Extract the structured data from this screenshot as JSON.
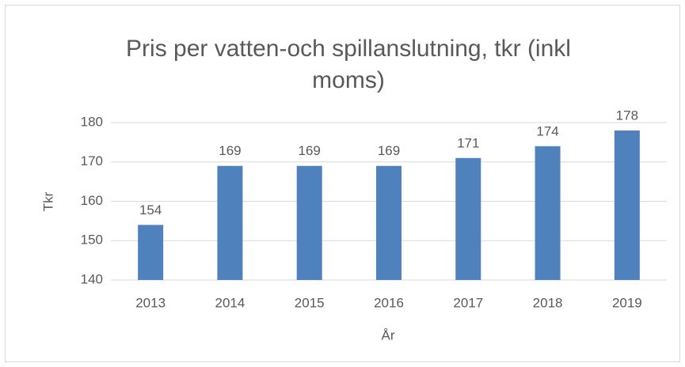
{
  "chart_data": {
    "type": "bar",
    "title": "Pris per vatten-och spillanslutning, tkr (inkl moms)",
    "x_label": "År",
    "y_label": "Tkr",
    "categories": [
      "2013",
      "2014",
      "2015",
      "2016",
      "2017",
      "2018",
      "2019"
    ],
    "values": [
      154,
      169,
      169,
      169,
      171,
      174,
      178
    ],
    "color": "#4f81bd",
    "ylim": [
      140,
      180
    ],
    "yticks": [
      140,
      150,
      160,
      170,
      180
    ],
    "grid": true
  }
}
